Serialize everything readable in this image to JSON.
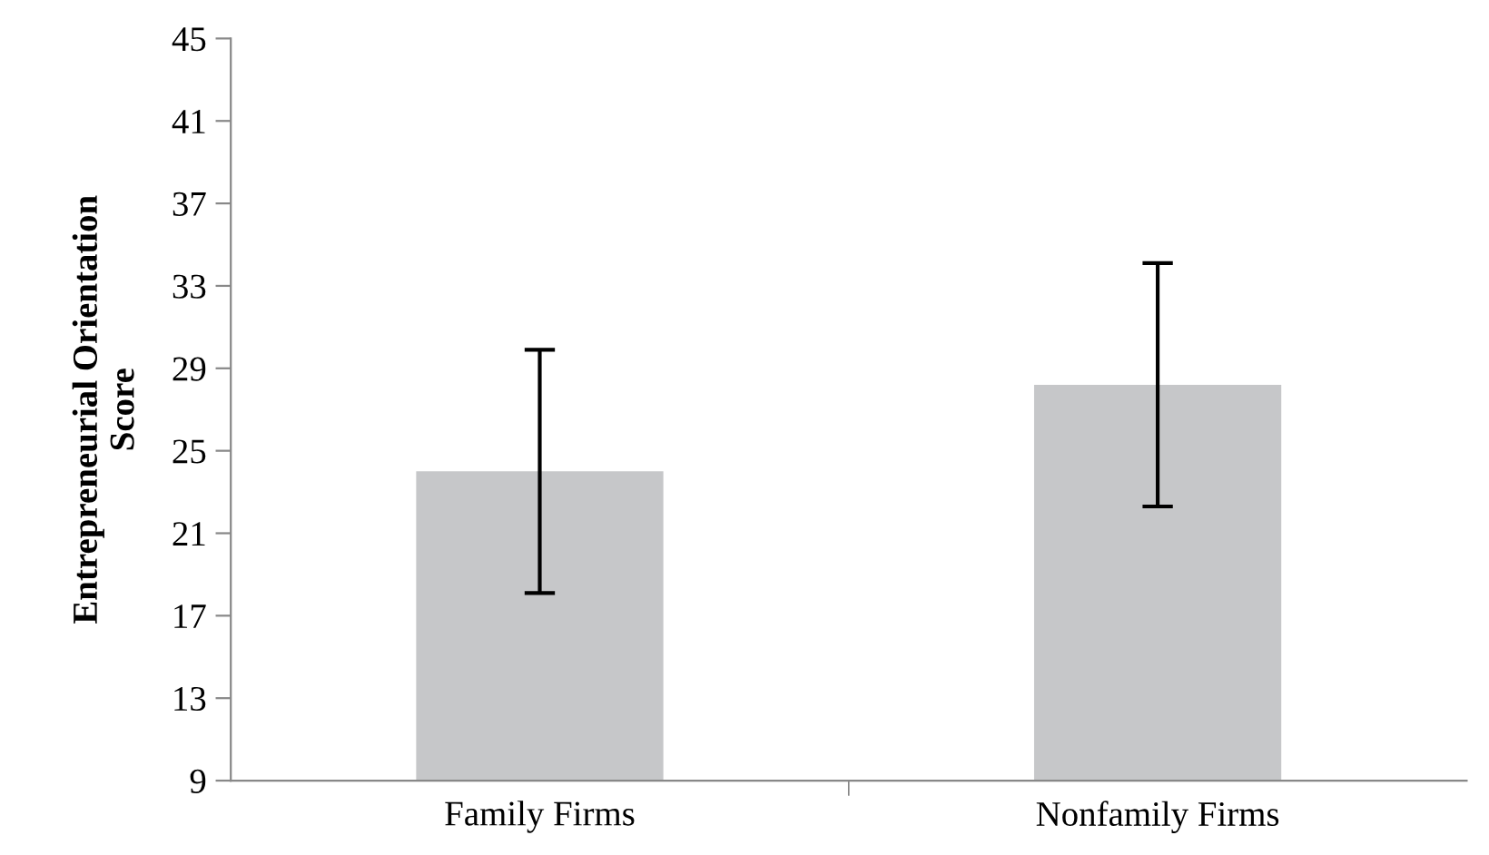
{
  "chart_data": {
    "type": "bar",
    "ylabel": "Entrepreneurial Orientation\nScore",
    "categories": [
      "Family Firms",
      "Nonfamily Firms"
    ],
    "values": [
      24.0,
      28.2
    ],
    "errors": [
      5.9,
      5.9
    ],
    "color": "#c6c7c9",
    "ylim": [
      9,
      45
    ],
    "yticks": [
      9,
      13,
      17,
      21,
      25,
      29,
      33,
      37,
      41,
      45
    ],
    "grid": false,
    "legend": false
  }
}
